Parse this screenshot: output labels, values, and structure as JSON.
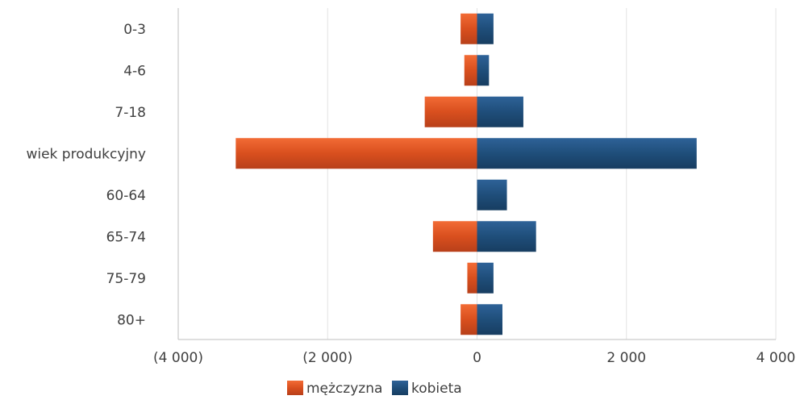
{
  "chart_data": {
    "type": "bar",
    "orientation": "horizontal",
    "stacked": "diverging",
    "categories": [
      "0-3",
      "4-6",
      "7-18",
      "wiek produkcyjny",
      "60-64",
      "65-74",
      "75-79",
      "80+"
    ],
    "series": [
      {
        "name": "mężczyzna",
        "color": "#d94f1e",
        "values": [
          -220,
          -170,
          -700,
          -3230,
          0,
          -590,
          -130,
          -220
        ]
      },
      {
        "name": "kobieta",
        "color": "#1f4e7a",
        "values": [
          220,
          160,
          620,
          2940,
          400,
          790,
          220,
          340
        ]
      }
    ],
    "xticks": [
      "(4 000)",
      "(2 000)",
      "0",
      "2 000",
      "4 000"
    ],
    "xtick_values": [
      -4000,
      -2000,
      0,
      2000,
      4000
    ],
    "xlim": [
      -4000,
      4000
    ],
    "grid": "vertical",
    "legend_position": "bottom"
  }
}
